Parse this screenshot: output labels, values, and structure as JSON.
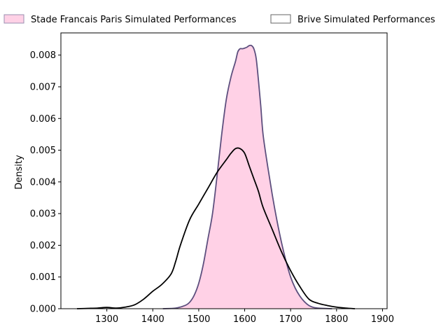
{
  "chart_data": {
    "type": "area",
    "title": "",
    "xlabel": "",
    "ylabel": "Density",
    "xlim": [
      1200,
      1910
    ],
    "ylim": [
      0,
      0.0087
    ],
    "xticks": [
      1300,
      1400,
      1500,
      1600,
      1700,
      1800,
      1900
    ],
    "yticks": [
      0.0,
      0.001,
      0.002,
      0.003,
      0.004,
      0.005,
      0.006,
      0.007,
      0.008
    ],
    "ytick_labels": [
      "0.000",
      "0.001",
      "0.002",
      "0.003",
      "0.004",
      "0.005",
      "0.006",
      "0.007",
      "0.008"
    ],
    "grid": false,
    "legend_position": "top",
    "series": [
      {
        "name": "Stade Francais Paris Simulated Performances",
        "fill": "#ffd1e6",
        "stroke": "#5d4f7e",
        "filled": true,
        "x": [
          1422,
          1450,
          1470,
          1480,
          1490,
          1500,
          1510,
          1520,
          1530,
          1540,
          1550,
          1560,
          1570,
          1580,
          1585,
          1590,
          1595,
          1600,
          1605,
          1610,
          1615,
          1620,
          1625,
          1630,
          1635,
          1640,
          1650,
          1660,
          1670,
          1680,
          1690,
          1700,
          1710,
          1720,
          1730,
          1740,
          1750,
          1760,
          1770,
          1790
        ],
        "y": [
          0.0,
          2e-05,
          0.0001,
          0.0002,
          0.00042,
          0.0008,
          0.0014,
          0.0022,
          0.003,
          0.0042,
          0.0055,
          0.0066,
          0.0073,
          0.0078,
          0.0081,
          0.0082,
          0.0082,
          0.00822,
          0.00825,
          0.0083,
          0.0083,
          0.0082,
          0.0079,
          0.0072,
          0.0064,
          0.0055,
          0.0045,
          0.0036,
          0.0028,
          0.0021,
          0.0015,
          0.001,
          0.00065,
          0.0004,
          0.00022,
          0.0001,
          4e-05,
          2e-05,
          1e-05,
          0.0
        ]
      },
      {
        "name": "Brive Simulated Performances",
        "fill": "none",
        "stroke": "#000000",
        "filled": false,
        "x": [
          1235,
          1260,
          1280,
          1300,
          1320,
          1340,
          1360,
          1380,
          1400,
          1420,
          1440,
          1450,
          1460,
          1480,
          1500,
          1520,
          1540,
          1560,
          1570,
          1580,
          1590,
          1600,
          1610,
          1620,
          1630,
          1640,
          1660,
          1680,
          1700,
          1720,
          1740,
          1760,
          1780,
          1800,
          1820,
          1840
        ],
        "y": [
          0.0,
          1e-05,
          2e-05,
          4e-05,
          2e-05,
          5e-05,
          0.00012,
          0.0003,
          0.00055,
          0.00077,
          0.0011,
          0.0015,
          0.002,
          0.0028,
          0.0033,
          0.0038,
          0.0043,
          0.0047,
          0.0049,
          0.00505,
          0.00505,
          0.0049,
          0.0045,
          0.0041,
          0.0037,
          0.0032,
          0.0025,
          0.0018,
          0.0012,
          0.0007,
          0.0003,
          0.00017,
          0.0001,
          5e-05,
          2e-05,
          0.0
        ]
      }
    ]
  }
}
